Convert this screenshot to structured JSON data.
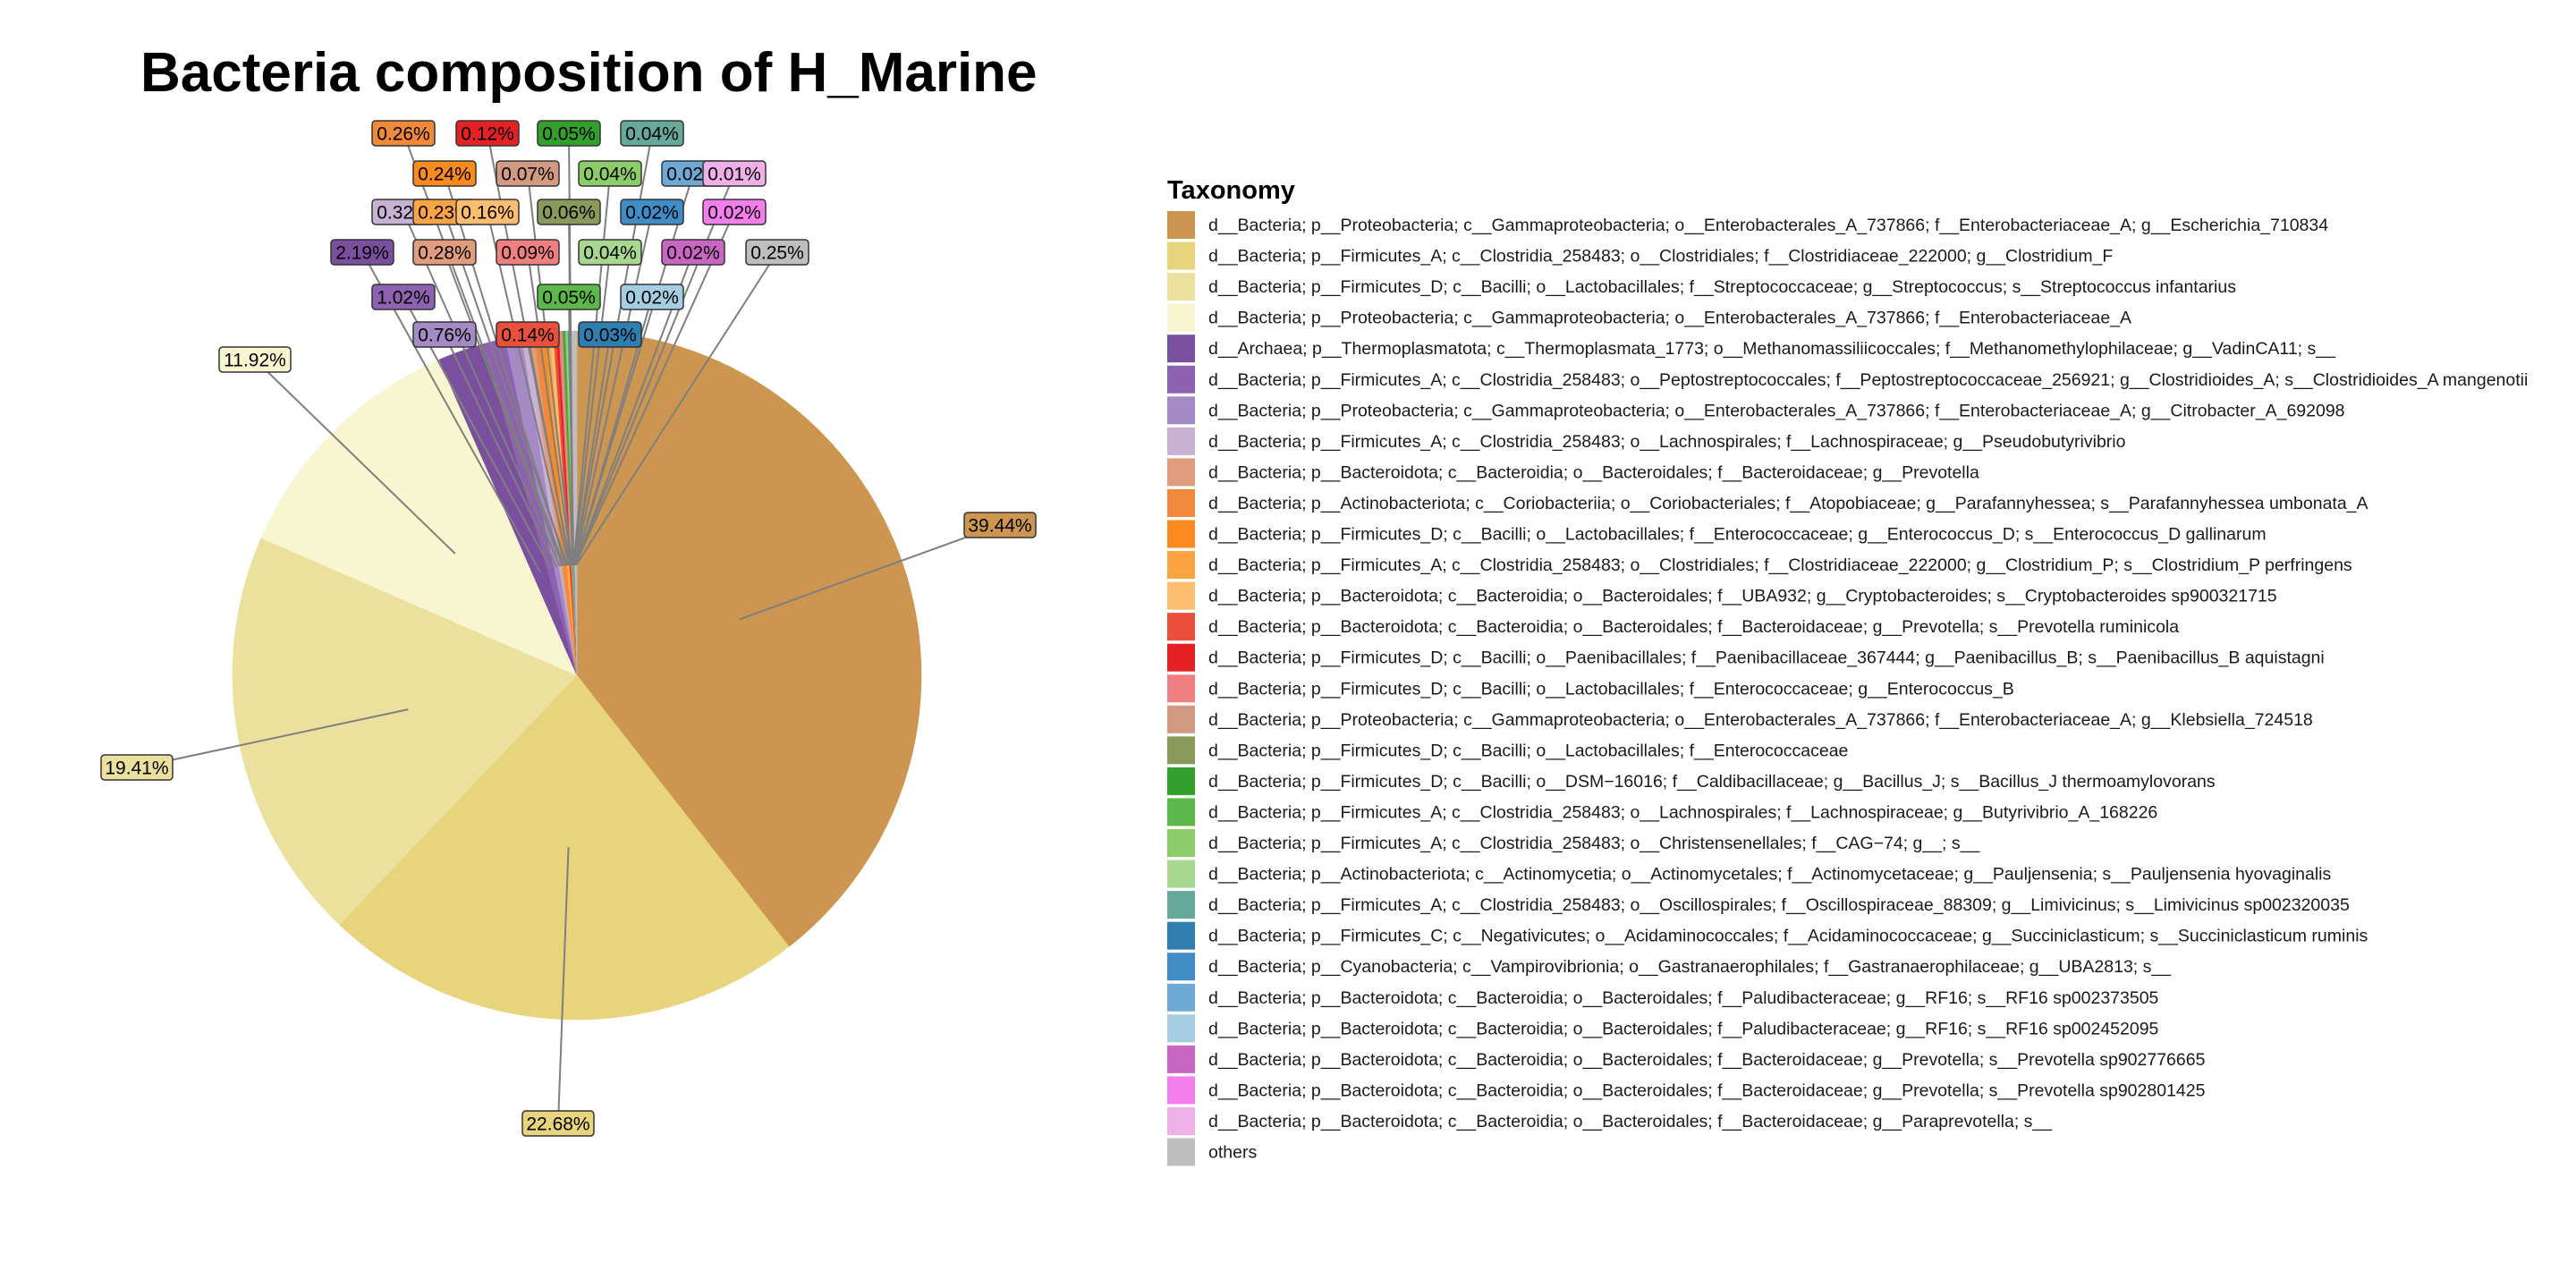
{
  "chart_data": {
    "type": "pie",
    "title": "Bacteria composition of H_Marine",
    "legend_title": "Taxonomy",
    "legend_position": "right",
    "slices": [
      {
        "label": "d__Bacteria; p__Proteobacteria; c__Gammaproteobacteria; o__Enterobacterales_A_737866; f__Enterobacteriaceae_A; g__Escherichia_710834",
        "value": 39.44,
        "text": "39.44%",
        "color": "#CC9650"
      },
      {
        "label": "d__Bacteria; p__Firmicutes_A; c__Clostridia_258483; o__Clostridiales; f__Clostridiaceae_222000; g__Clostridium_F",
        "value": 22.68,
        "text": "22.68%",
        "color": "#E8D47C"
      },
      {
        "label": "d__Bacteria; p__Firmicutes_D; c__Bacilli; o__Lactobacillales; f__Streptococcaceae; g__Streptococcus; s__Streptococcus infantarius",
        "value": 19.41,
        "text": "19.41%",
        "color": "#ECE09E"
      },
      {
        "label": "d__Bacteria; p__Proteobacteria; c__Gammaproteobacteria; o__Enterobacterales_A_737866; f__Enterobacteriaceae_A",
        "value": 11.92,
        "text": "11.92%",
        "color": "#F8F6D0"
      },
      {
        "label": "d__Archaea; p__Thermoplasmatota; c__Thermoplasmata_1773; o__Methanomassiliicoccales; f__Methanomethylophilaceae; g__VadinCA11; s__",
        "value": 2.19,
        "text": "2.19%",
        "color": "#7A509E"
      },
      {
        "label": "d__Bacteria; p__Firmicutes_A; c__Clostridia_258483; o__Peptostreptococcales; f__Peptostreptococcaceae_256921; g__Clostridioides_A; s__Clostridioides_A mangenotii",
        "value": 1.02,
        "text": "1.02%",
        "color": "#8E62B0"
      },
      {
        "label": "d__Bacteria; p__Proteobacteria; c__Gammaproteobacteria; o__Enterobacterales_A_737866; f__Enterobacteriaceae_A; g__Citrobacter_A_692098",
        "value": 0.76,
        "text": "0.76%",
        "color": "#A58BC6"
      },
      {
        "label": "d__Bacteria; p__Firmicutes_A; c__Clostridia_258483; o__Lachnospirales; f__Lachnospiraceae; g__Pseudobutyrivibrio",
        "value": 0.32,
        "text": "0.32%",
        "color": "#C7B1D4"
      },
      {
        "label": "d__Bacteria; p__Bacteroidota; c__Bacteroidia; o__Bacteroidales; f__Bacteroidaceae; g__Prevotella",
        "value": 0.28,
        "text": "0.28%",
        "color": "#E09C7C"
      },
      {
        "label": "d__Bacteria; p__Actinobacteriota; c__Coriobacteriia; o__Coriobacteriales; f__Atopobiaceae; g__Parafannyhessea; s__Parafannyhessea umbonata_A",
        "value": 0.26,
        "text": "0.26%",
        "color": "#F08A3A"
      },
      {
        "label": "d__Bacteria; p__Firmicutes_D; c__Bacilli; o__Lactobacillales; f__Enterococcaceae; g__Enterococcus_D; s__Enterococcus_D gallinarum",
        "value": 0.24,
        "text": "0.24%",
        "color": "#FC8A1E"
      },
      {
        "label": "d__Bacteria; p__Firmicutes_A; c__Clostridia_258483; o__Clostridiales; f__Clostridiaceae_222000; g__Clostridium_P; s__Clostridium_P perfringens",
        "value": 0.23,
        "text": "0.23%",
        "color": "#FCA444"
      },
      {
        "label": "d__Bacteria; p__Bacteroidota; c__Bacteroidia; o__Bacteroidales; f__UBA932; g__Cryptobacteroides; s__Cryptobacteroides sp900321715",
        "value": 0.16,
        "text": "0.16%",
        "color": "#FDBE72"
      },
      {
        "label": "d__Bacteria; p__Bacteroidota; c__Bacteroidia; o__Bacteroidales; f__Bacteroidaceae; g__Prevotella; s__Prevotella ruminicola",
        "value": 0.14,
        "text": "0.14%",
        "color": "#E8503C"
      },
      {
        "label": "d__Bacteria; p__Firmicutes_D; c__Bacilli; o__Paenibacillales; f__Paenibacillaceae_367444; g__Paenibacillus_B; s__Paenibacillus_B aquistagni",
        "value": 0.12,
        "text": "0.12%",
        "color": "#E42226"
      },
      {
        "label": "d__Bacteria; p__Firmicutes_D; c__Bacilli; o__Lactobacillales; f__Enterococcaceae; g__Enterococcus_B",
        "value": 0.09,
        "text": "0.09%",
        "color": "#F08080"
      },
      {
        "label": "d__Bacteria; p__Proteobacteria; c__Gammaproteobacteria; o__Enterobacterales_A_737866; f__Enterobacteriaceae_A; g__Klebsiella_724518",
        "value": 0.07,
        "text": "0.07%",
        "color": "#D29A82"
      },
      {
        "label": "d__Bacteria; p__Firmicutes_D; c__Bacilli; o__Lactobacillales; f__Enterococcaceae",
        "value": 0.06,
        "text": "0.06%",
        "color": "#8A9A5A"
      },
      {
        "label": "d__Bacteria; p__Firmicutes_D; c__Bacilli; o__DSM−16016; f__Caldibacillaceae; g__Bacillus_J; s__Bacillus_J thermoamylovorans",
        "value": 0.05,
        "text": "0.05%",
        "color": "#33A02C"
      },
      {
        "label": "d__Bacteria; p__Firmicutes_A; c__Clostridia_258483; o__Lachnospirales; f__Lachnospiraceae; g__Butyrivibrio_A_168226",
        "value": 0.05,
        "text": "0.05%",
        "color": "#5DB84A"
      },
      {
        "label": "d__Bacteria; p__Firmicutes_A; c__Clostridia_258483; o__Christensenellales; f__CAG−74; g__; s__",
        "value": 0.04,
        "text": "0.04%",
        "color": "#8CCD6A"
      },
      {
        "label": "d__Bacteria; p__Actinobacteriota; c__Actinomycetia; o__Actinomycetales; f__Actinomycetaceae; g__Pauljensenia; s__Pauljensenia hyovaginalis",
        "value": 0.04,
        "text": "0.04%",
        "color": "#A8D890"
      },
      {
        "label": "d__Bacteria; p__Firmicutes_A; c__Clostridia_258483; o__Oscillospirales; f__Oscillospiraceae_88309; g__Limivicinus; s__Limivicinus sp002320035",
        "value": 0.04,
        "text": "0.04%",
        "color": "#66A89A"
      },
      {
        "label": "d__Bacteria; p__Firmicutes_C; c__Negativicutes; o__Acidaminococcales; f__Acidaminococcaceae; g__Succiniclasticum; s__Succiniclasticum ruminis",
        "value": 0.03,
        "text": "0.03%",
        "color": "#2E7EB0"
      },
      {
        "label": "d__Bacteria; p__Cyanobacteria; c__Vampirovibrionia; o__Gastranaerophilales; f__Gastranaerophilaceae; g__UBA2813; s__",
        "value": 0.02,
        "text": "0.02%",
        "color": "#3F8CC6"
      },
      {
        "label": "d__Bacteria; p__Bacteroidota; c__Bacteroidia; o__Bacteroidales; f__Paludibacteraceae; g__RF16; s__RF16 sp002373505",
        "value": 0.02,
        "text": "0.02%",
        "color": "#6EA8D4"
      },
      {
        "label": "d__Bacteria; p__Bacteroidota; c__Bacteroidia; o__Bacteroidales; f__Paludibacteraceae; g__RF16; s__RF16 sp002452095",
        "value": 0.02,
        "text": "0.02%",
        "color": "#A6CEE3"
      },
      {
        "label": "d__Bacteria; p__Bacteroidota; c__Bacteroidia; o__Bacteroidales; f__Bacteroidaceae; g__Prevotella; s__Prevotella sp902776665",
        "value": 0.02,
        "text": "0.02%",
        "color": "#C966C4"
      },
      {
        "label": "d__Bacteria; p__Bacteroidota; c__Bacteroidia; o__Bacteroidales; f__Bacteroidaceae; g__Prevotella; s__Prevotella sp902801425",
        "value": 0.02,
        "text": "0.02%",
        "color": "#F47EEC"
      },
      {
        "label": "d__Bacteria; p__Bacteroidota; c__Bacteroidia; o__Bacteroidales; f__Bacteroidaceae; g__Paraprevotella; s__",
        "value": 0.01,
        "text": "0.01%",
        "color": "#EEB0E6"
      },
      {
        "label": "others",
        "value": 0.25,
        "text": "0.25%",
        "color": "#BEBEBE"
      }
    ]
  }
}
